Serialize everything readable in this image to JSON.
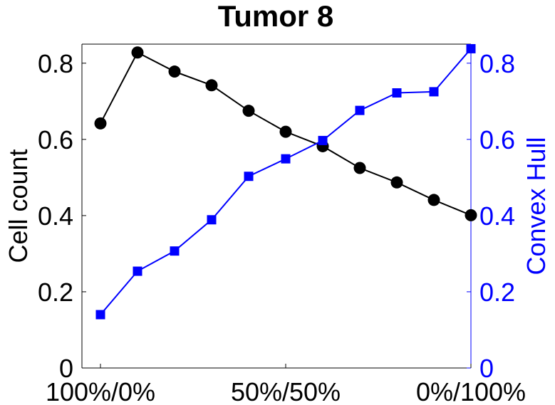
{
  "chart_data": {
    "type": "line",
    "title": "Tumor 8",
    "xlabel": "",
    "x_tick_labels": [
      "100%/0%",
      "50%/50%",
      "0%/100%"
    ],
    "x_tick_positions": [
      1,
      6,
      11
    ],
    "xlim": [
      0.5,
      11
    ],
    "y_left": {
      "label": "Cell count",
      "ylim": [
        0,
        0.85
      ],
      "ticks": [
        0,
        0.2,
        0.4,
        0.6,
        0.8
      ],
      "tick_labels": [
        "0",
        "0.2",
        "0.4",
        "0.6",
        "0.8"
      ],
      "color": "#000000"
    },
    "y_right": {
      "label": "Convex Hull",
      "ylim": [
        0,
        0.85
      ],
      "ticks": [
        0,
        0.2,
        0.4,
        0.6,
        0.8
      ],
      "tick_labels": [
        "0",
        "0.2",
        "0.4",
        "0.6",
        "0.8"
      ],
      "color": "#0000ff"
    },
    "x": [
      1,
      2,
      3,
      4,
      5,
      6,
      7,
      8,
      9,
      10,
      11
    ],
    "series": [
      {
        "axis": "left",
        "marker": "circle",
        "color": "#000000",
        "values": [
          0.642,
          0.828,
          0.778,
          0.742,
          0.675,
          0.62,
          0.582,
          0.525,
          0.487,
          0.441,
          0.401
        ]
      },
      {
        "axis": "right",
        "marker": "square",
        "color": "#0000ff",
        "values": [
          0.14,
          0.254,
          0.307,
          0.389,
          0.503,
          0.549,
          0.597,
          0.676,
          0.722,
          0.725,
          0.838
        ]
      }
    ],
    "grid": false
  }
}
